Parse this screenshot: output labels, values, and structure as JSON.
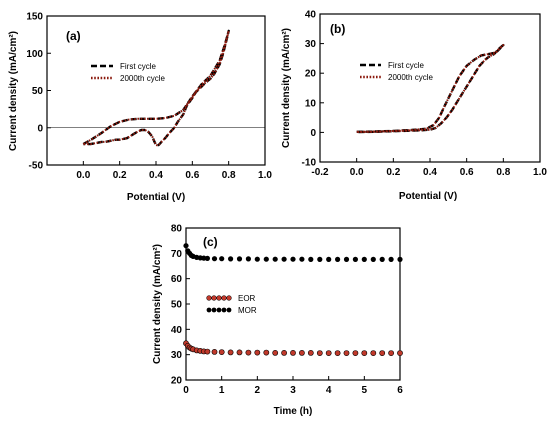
{
  "chart_data": [
    {
      "panel_label": "(a)",
      "type": "line",
      "xlabel": "Potential (V)",
      "ylabel": "Current density (mA/cm²)",
      "xlim": [
        -0.2,
        1.0
      ],
      "ylim": [
        -50,
        150
      ],
      "xticks": [
        "0.0",
        "0.2",
        "0.4",
        "0.6",
        "0.8",
        "1.0"
      ],
      "xtick_values": [
        0.0,
        0.2,
        0.4,
        0.6,
        0.8,
        1.0
      ],
      "yticks": [
        "-50",
        "0",
        "50",
        "100",
        "150"
      ],
      "ytick_values": [
        -50,
        0,
        50,
        100,
        150
      ],
      "legend_position": "upper-left",
      "series": [
        {
          "name": "First cycle",
          "color": "#000000",
          "style": "dashed",
          "x": [
            0.0,
            0.05,
            0.1,
            0.15,
            0.2,
            0.25,
            0.3,
            0.35,
            0.4,
            0.45,
            0.5,
            0.55,
            0.6,
            0.65,
            0.7,
            0.75,
            0.78,
            0.8,
            0.79,
            0.77,
            0.75,
            0.72,
            0.7,
            0.67,
            0.65,
            0.62,
            0.6,
            0.57,
            0.55,
            0.52,
            0.5,
            0.47,
            0.45,
            0.43,
            0.42,
            0.41,
            0.4,
            0.39,
            0.38,
            0.36,
            0.34,
            0.32,
            0.3,
            0.28,
            0.26,
            0.24,
            0.22,
            0.2,
            0.18,
            0.16,
            0.14,
            0.12,
            0.1,
            0.08,
            0.06,
            0.04,
            0.02,
            0.0
          ],
          "y": [
            -22,
            -15,
            -7,
            2,
            8,
            11,
            12,
            12,
            12,
            13,
            16,
            24,
            42,
            58,
            70,
            90,
            112,
            130,
            120,
            100,
            85,
            72,
            66,
            60,
            55,
            48,
            40,
            30,
            18,
            8,
            0,
            -8,
            -14,
            -19,
            -22,
            -24,
            -23,
            -18,
            -12,
            -6,
            -3,
            -3,
            -5,
            -8,
            -11,
            -14,
            -15,
            -16,
            -16,
            -17,
            -18,
            -19,
            -19,
            -20,
            -21,
            -22,
            -22,
            -22
          ]
        },
        {
          "name": "2000th cycle",
          "color": "#8b1a0e",
          "style": "dotted",
          "x": [
            0.0,
            0.05,
            0.1,
            0.15,
            0.2,
            0.25,
            0.3,
            0.35,
            0.4,
            0.45,
            0.5,
            0.55,
            0.6,
            0.65,
            0.7,
            0.75,
            0.78,
            0.8,
            0.79,
            0.77,
            0.75,
            0.72,
            0.7,
            0.67,
            0.65,
            0.62,
            0.6,
            0.57,
            0.55,
            0.52,
            0.5,
            0.47,
            0.45,
            0.43,
            0.42,
            0.41,
            0.4,
            0.39,
            0.38,
            0.36,
            0.34,
            0.32,
            0.3,
            0.28,
            0.26,
            0.24,
            0.22,
            0.2,
            0.18,
            0.16,
            0.14,
            0.12,
            0.1,
            0.08,
            0.06,
            0.04,
            0.02,
            0.0
          ],
          "y": [
            -22,
            -15,
            -7,
            2,
            8,
            11,
            12,
            12,
            12,
            13,
            16,
            24,
            42,
            58,
            70,
            90,
            112,
            130,
            120,
            100,
            85,
            72,
            66,
            60,
            55,
            48,
            40,
            30,
            18,
            8,
            0,
            -8,
            -14,
            -19,
            -22,
            -24,
            -23,
            -18,
            -12,
            -6,
            -3,
            -3,
            -5,
            -8,
            -11,
            -14,
            -15,
            -16,
            -16,
            -17,
            -18,
            -19,
            -19,
            -20,
            -21,
            -22,
            -22,
            -22
          ]
        }
      ]
    },
    {
      "panel_label": "(b)",
      "type": "line",
      "xlabel": "Potential (V)",
      "ylabel": "Current density (mA/cm²)",
      "xlim": [
        -0.2,
        1.0
      ],
      "ylim": [
        -10,
        40
      ],
      "xticks": [
        "-0.2",
        "0.0",
        "0.2",
        "0.4",
        "0.6",
        "0.8",
        "1.0"
      ],
      "xtick_values": [
        -0.2,
        0.0,
        0.2,
        0.4,
        0.6,
        0.8,
        1.0
      ],
      "yticks": [
        "-10",
        "0",
        "10",
        "20",
        "30",
        "40"
      ],
      "ytick_values": [
        -10,
        0,
        10,
        20,
        30,
        40
      ],
      "legend_position": "center",
      "series": [
        {
          "name": "First cycle",
          "color": "#000000",
          "style": "dashed",
          "x": [
            0.0,
            0.1,
            0.2,
            0.3,
            0.38,
            0.42,
            0.45,
            0.48,
            0.52,
            0.56,
            0.6,
            0.64,
            0.68,
            0.72,
            0.76,
            0.8,
            0.78,
            0.75,
            0.72,
            0.7,
            0.67,
            0.64,
            0.61,
            0.58,
            0.55,
            0.52,
            0.49,
            0.46,
            0.43,
            0.4,
            0.35,
            0.3,
            0.2,
            0.1,
            0.0
          ],
          "y": [
            0.2,
            0.3,
            0.5,
            0.8,
            1.2,
            2.5,
            5.0,
            9.0,
            14.0,
            19.0,
            22.5,
            24.5,
            26.0,
            26.5,
            27.0,
            29.5,
            28.5,
            26.5,
            25.5,
            24.5,
            22.5,
            19.5,
            16.5,
            13.5,
            10.5,
            7.5,
            5.0,
            3.0,
            1.5,
            0.9,
            0.7,
            0.6,
            0.4,
            0.2,
            0.1
          ]
        },
        {
          "name": "2000th cycle",
          "color": "#8b1a0e",
          "style": "dotted",
          "x": [
            0.0,
            0.1,
            0.2,
            0.3,
            0.38,
            0.42,
            0.45,
            0.48,
            0.52,
            0.56,
            0.6,
            0.64,
            0.68,
            0.72,
            0.76,
            0.8,
            0.78,
            0.75,
            0.72,
            0.7,
            0.67,
            0.64,
            0.61,
            0.58,
            0.55,
            0.52,
            0.49,
            0.46,
            0.43,
            0.4,
            0.35,
            0.3,
            0.2,
            0.1,
            0.0
          ],
          "y": [
            0.2,
            0.3,
            0.5,
            0.8,
            1.2,
            2.5,
            5.0,
            9.0,
            14.0,
            19.0,
            22.5,
            24.5,
            26.0,
            26.5,
            27.0,
            29.5,
            28.5,
            26.5,
            25.5,
            24.5,
            22.5,
            19.5,
            16.5,
            13.5,
            10.5,
            7.5,
            5.0,
            3.0,
            1.5,
            0.9,
            0.7,
            0.6,
            0.4,
            0.2,
            0.1
          ]
        }
      ]
    },
    {
      "panel_label": "(c)",
      "type": "scatter",
      "xlabel": "Time (h)",
      "ylabel": "Current density (mA/cm²)",
      "xlim": [
        0,
        6
      ],
      "ylim": [
        20,
        80
      ],
      "xticks": [
        "0",
        "1",
        "2",
        "3",
        "4",
        "5",
        "6"
      ],
      "xtick_values": [
        0,
        1,
        2,
        3,
        4,
        5,
        6
      ],
      "yticks": [
        "20",
        "30",
        "40",
        "50",
        "60",
        "70",
        "80"
      ],
      "ytick_values": [
        20,
        30,
        40,
        50,
        60,
        70,
        80
      ],
      "legend_position": "center-left",
      "series": [
        {
          "name": "EOR",
          "color": "#c0392b",
          "x": [
            0,
            0.05,
            0.1,
            0.15,
            0.2,
            0.3,
            0.4,
            0.5,
            0.6,
            0.8,
            1.0,
            1.25,
            1.5,
            1.75,
            2.0,
            2.25,
            2.5,
            2.75,
            3.0,
            3.25,
            3.5,
            3.75,
            4.0,
            4.25,
            4.5,
            4.75,
            5.0,
            5.25,
            5.5,
            5.75,
            6.0
          ],
          "y": [
            34.5,
            33.5,
            32.8,
            32.4,
            32.1,
            31.7,
            31.5,
            31.3,
            31.2,
            31.1,
            31.0,
            30.9,
            30.9,
            30.8,
            30.8,
            30.8,
            30.7,
            30.7,
            30.7,
            30.7,
            30.7,
            30.6,
            30.6,
            30.6,
            30.6,
            30.6,
            30.6,
            30.6,
            30.6,
            30.6,
            30.6
          ]
        },
        {
          "name": "MOR",
          "color": "#000000",
          "x": [
            0,
            0.05,
            0.1,
            0.15,
            0.2,
            0.3,
            0.4,
            0.5,
            0.6,
            0.8,
            1.0,
            1.25,
            1.5,
            1.75,
            2.0,
            2.25,
            2.5,
            2.75,
            3.0,
            3.25,
            3.5,
            3.75,
            4.0,
            4.25,
            4.5,
            4.75,
            5.0,
            5.25,
            5.5,
            5.75,
            6.0
          ],
          "y": [
            73.0,
            71.0,
            70.0,
            69.2,
            68.8,
            68.4,
            68.2,
            68.1,
            68.0,
            67.9,
            67.9,
            67.8,
            67.8,
            67.8,
            67.7,
            67.7,
            67.7,
            67.7,
            67.7,
            67.7,
            67.6,
            67.6,
            67.6,
            67.6,
            67.6,
            67.6,
            67.6,
            67.6,
            67.6,
            67.6,
            67.6
          ]
        }
      ]
    }
  ]
}
